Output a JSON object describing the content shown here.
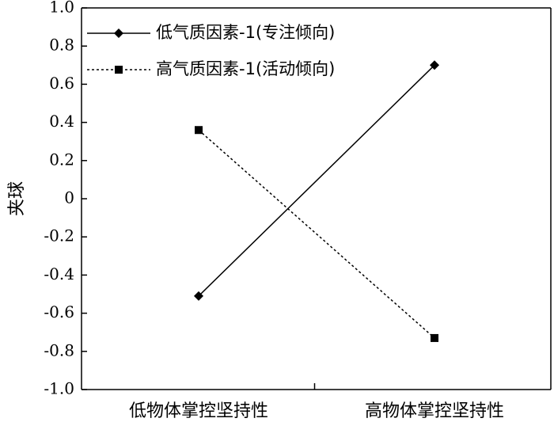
{
  "chart_data": {
    "type": "line",
    "title": "",
    "xlabel": "",
    "ylabel": "夹球",
    "categories": [
      "低物体掌控坚持性",
      "高物体掌控坚持性"
    ],
    "ylim": [
      -1.0,
      1.0
    ],
    "yticks": [
      "1.0",
      "0.8",
      "0.6",
      "0.4",
      "0.2",
      "0",
      "-0.2",
      "-0.4",
      "-0.6",
      "-0.8",
      "-1.0"
    ],
    "legend_position": "top-left",
    "grid": false,
    "series": [
      {
        "name": "低气质因素-1(专注倾向)",
        "values": [
          -0.51,
          0.7
        ],
        "marker": "diamond",
        "line_style": "solid",
        "color": "#000000"
      },
      {
        "name": "高气质因素-1(活动倾向)",
        "values": [
          0.36,
          -0.73
        ],
        "marker": "square",
        "line_style": "dotted",
        "color": "#000000"
      }
    ]
  }
}
